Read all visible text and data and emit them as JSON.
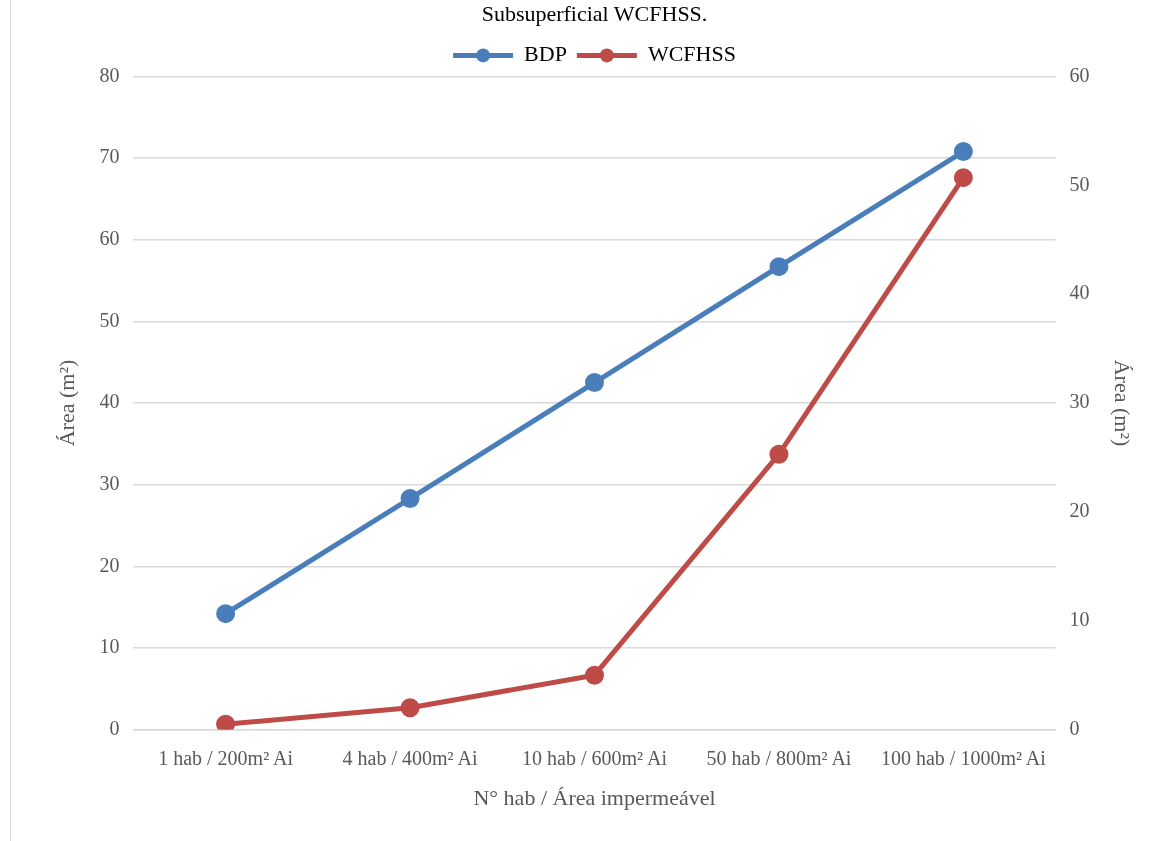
{
  "chart_data": {
    "type": "line",
    "title": "Subsuperficial WCFHSS.",
    "xlabel": "N° hab / Área impermeável",
    "ylabel": "Área (m²)",
    "y2label": "Área (m²)",
    "categories": [
      "1 hab / 200m² Ai",
      "4 hab / 400m² Ai",
      "10 hab / 600m² Ai",
      "50 hab / 800m² Ai",
      "100 hab / 1000m² Ai"
    ],
    "series": [
      {
        "name": "BDP",
        "color": "#4a7ebb",
        "values": [
          14.2,
          28.3,
          42.5,
          56.7,
          70.8
        ]
      },
      {
        "name": "WCFHSS",
        "color": "#be4b48",
        "axis": "y2",
        "values": [
          0.5,
          2.0,
          5.0,
          25.3,
          50.7
        ]
      }
    ],
    "ylim": [
      0,
      80
    ],
    "yticks": [
      0,
      10,
      20,
      30,
      40,
      50,
      60,
      70,
      80
    ],
    "y2lim": [
      0,
      60
    ],
    "y2ticks": [
      0,
      10,
      20,
      30,
      40,
      50,
      60
    ],
    "grid": "y",
    "legend": "top",
    "marker": "circle",
    "line_style": "solid"
  }
}
